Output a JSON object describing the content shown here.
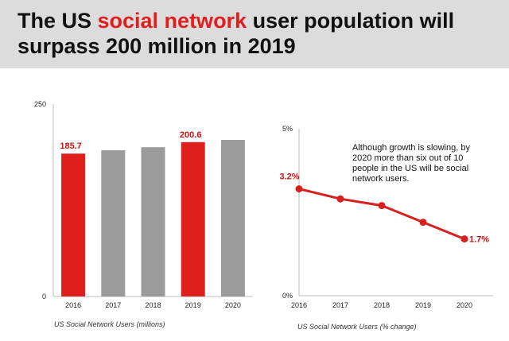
{
  "header": {
    "title_part1": "The US ",
    "title_highlight": "social network",
    "title_part2": " user population will surpass 200 million in 2019"
  },
  "colors": {
    "highlight": "#e01e1e",
    "bar_gray": "#9b9b9b",
    "header_bg": "#dcdcdc"
  },
  "note": "Although growth is slowing, by 2020 more than six out of 10 people in the US will be social network users.",
  "chart_data": [
    {
      "type": "bar",
      "title": "",
      "caption": "US Social Network Users (millions)",
      "categories": [
        "2016",
        "2017",
        "2018",
        "2019",
        "2020"
      ],
      "values": [
        185.7,
        190,
        194,
        200.6,
        203.5
      ],
      "highlight": [
        true,
        false,
        false,
        true,
        false
      ],
      "data_labels": [
        "185.7",
        "",
        "",
        "200.6",
        ""
      ],
      "y_ticks": [
        "0",
        "250"
      ],
      "ylim": [
        0,
        250
      ],
      "grid": false
    },
    {
      "type": "line",
      "title": "",
      "caption": "US Social Network Users (% change)",
      "x": [
        "2016",
        "2017",
        "2018",
        "2019",
        "2020"
      ],
      "values": [
        3.2,
        2.9,
        2.7,
        2.2,
        1.7
      ],
      "data_labels": [
        "3.2%",
        "",
        "",
        "",
        "1.7%"
      ],
      "y_ticks": [
        "0%",
        "5%"
      ],
      "ylim": [
        0,
        5
      ],
      "grid": false
    }
  ]
}
